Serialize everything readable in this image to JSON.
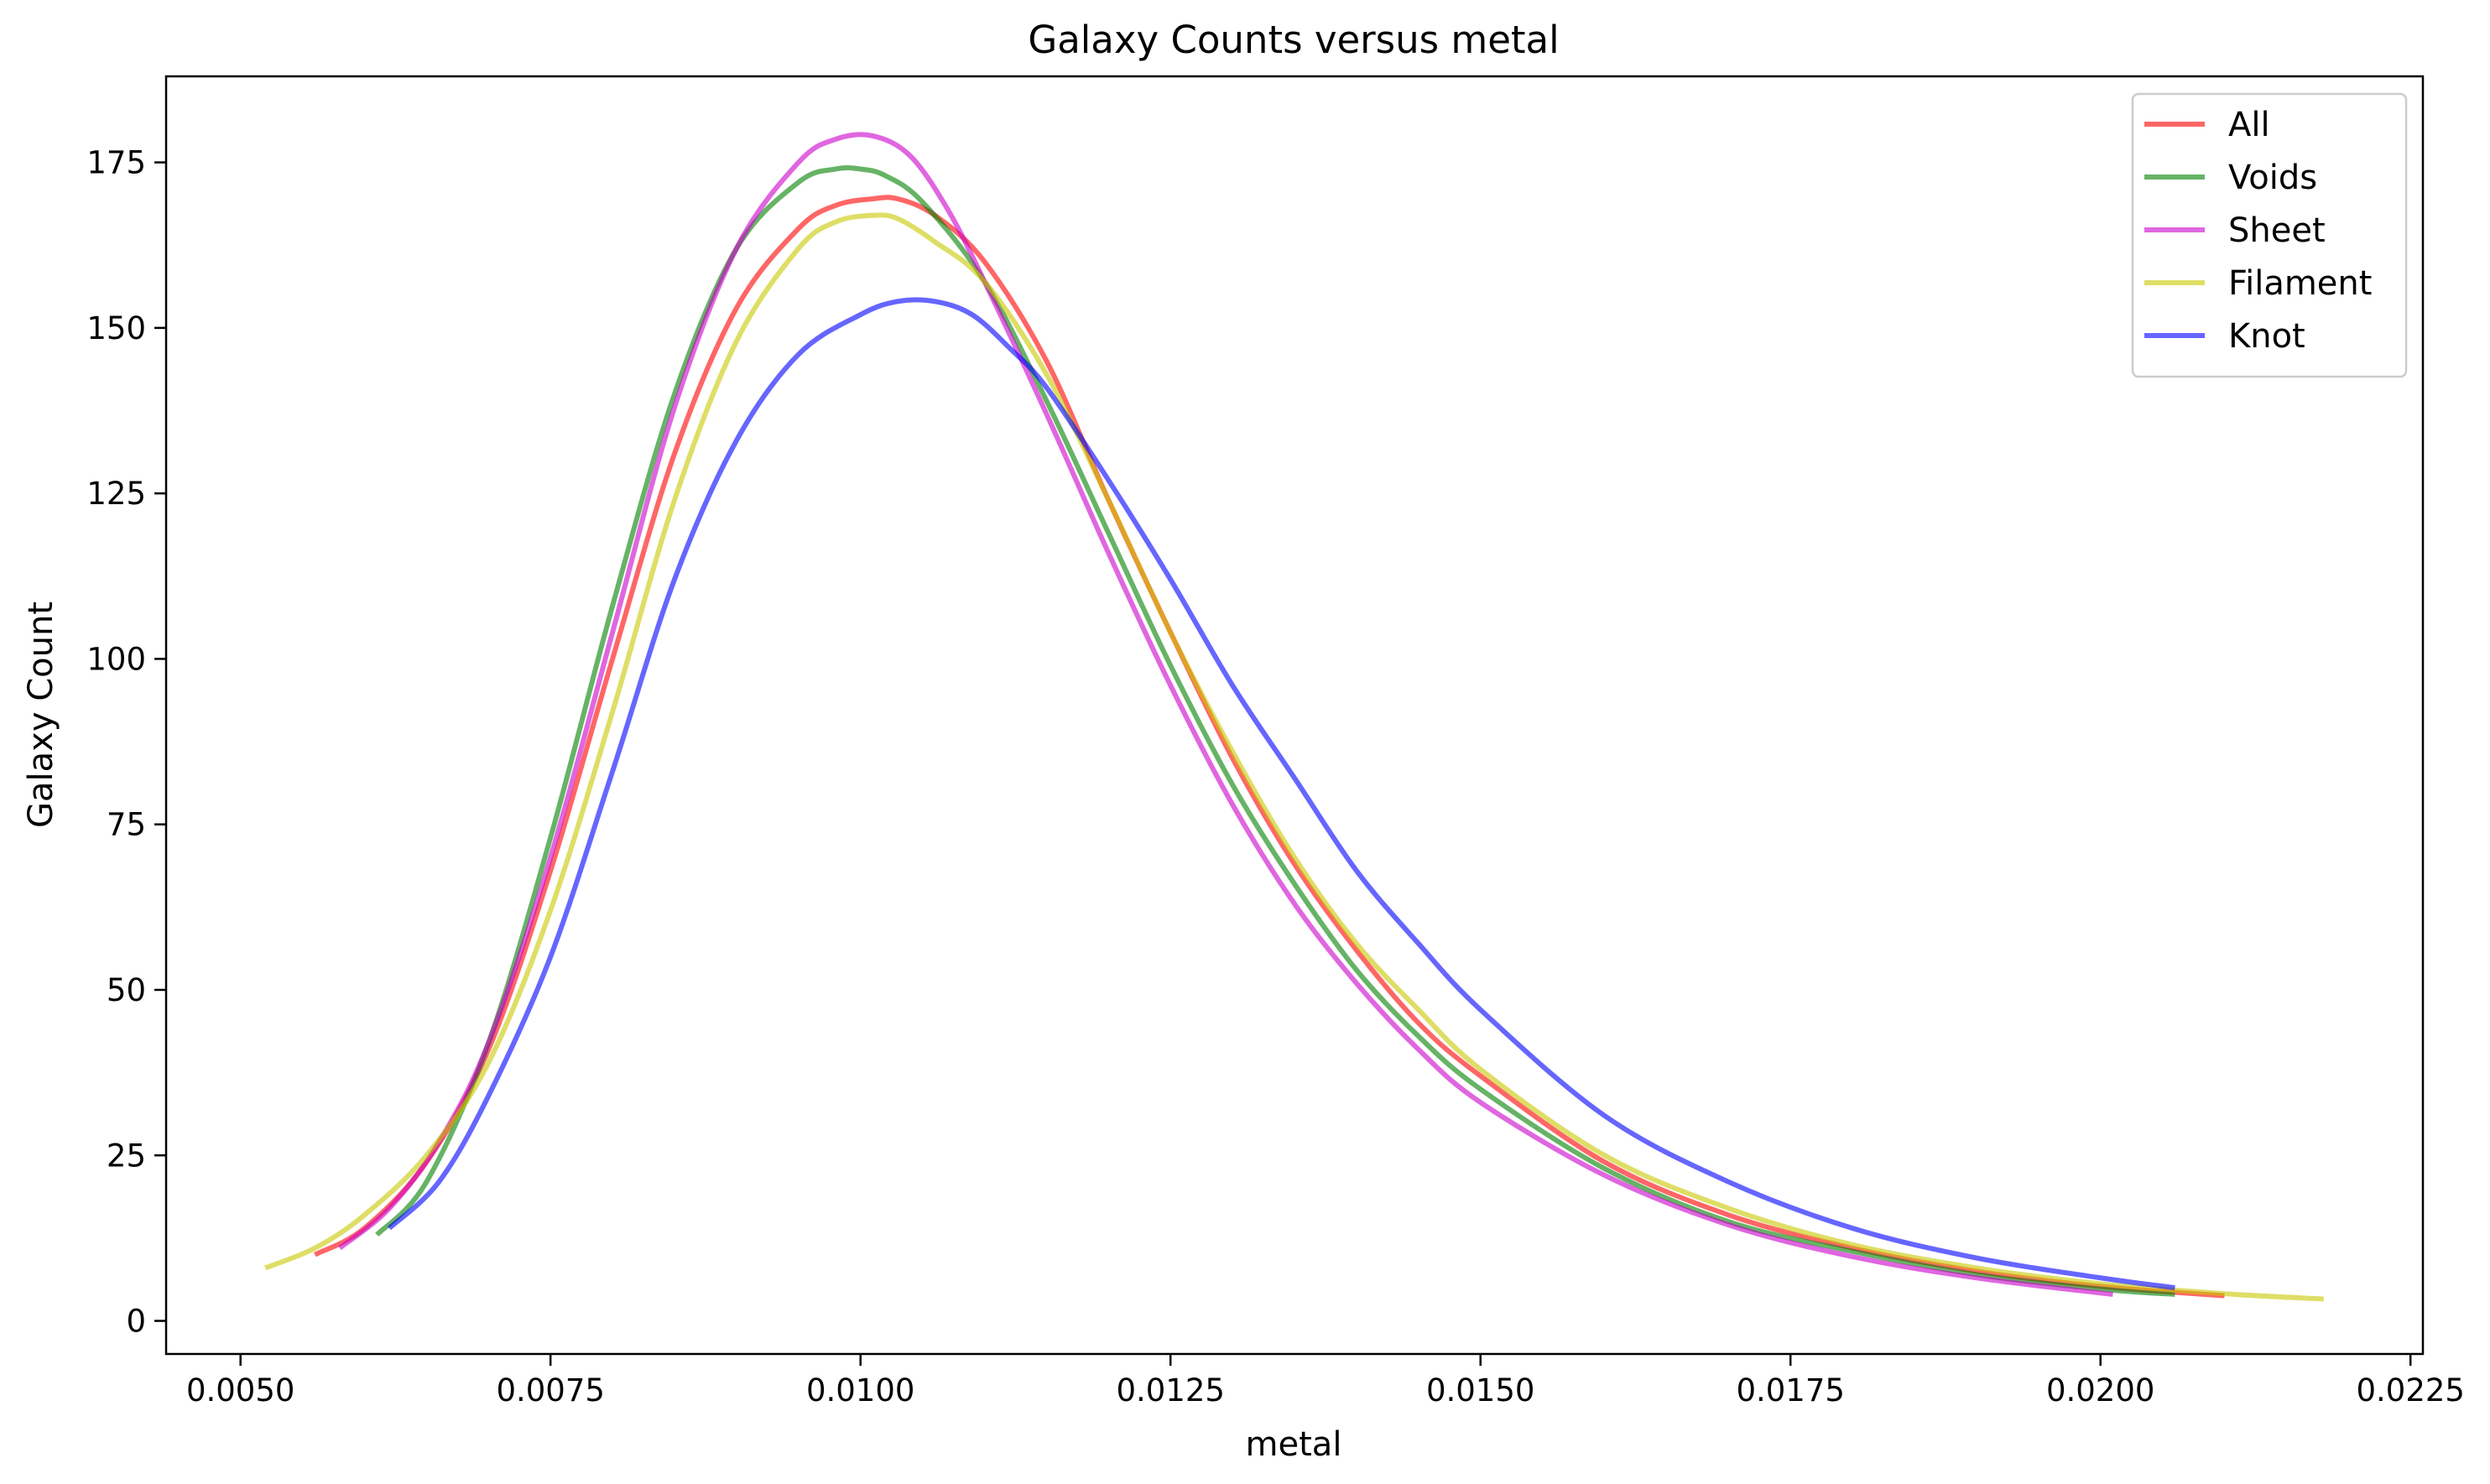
{
  "chart_data": {
    "type": "line",
    "title": "Galaxy Counts versus metal",
    "xlabel": "metal",
    "ylabel": "Galaxy Count",
    "xlim": [
      0.0044,
      0.0226
    ],
    "ylim": [
      -5,
      188
    ],
    "xticks": [
      0.005,
      0.0075,
      0.01,
      0.0125,
      0.015,
      0.0175,
      0.02,
      0.0225
    ],
    "xtick_labels": [
      "0.0050",
      "0.0075",
      "0.0100",
      "0.0125",
      "0.0150",
      "0.0175",
      "0.0200",
      "0.0225"
    ],
    "yticks": [
      0,
      25,
      50,
      75,
      100,
      125,
      150,
      175
    ],
    "ytick_labels": [
      "0",
      "25",
      "50",
      "75",
      "100",
      "125",
      "150",
      "175"
    ],
    "grid": false,
    "legend_position": "top-right",
    "series": [
      {
        "name": "All",
        "color": "#ff0000",
        "x": [
          0.0056,
          0.006,
          0.0065,
          0.007,
          0.0075,
          0.008,
          0.0085,
          0.009,
          0.0095,
          0.0098,
          0.0101,
          0.0103,
          0.0106,
          0.011,
          0.0115,
          0.012,
          0.0125,
          0.013,
          0.0135,
          0.014,
          0.0145,
          0.015,
          0.016,
          0.017,
          0.018,
          0.019,
          0.02,
          0.021
        ],
        "y": [
          10,
          14,
          24,
          41,
          68,
          100,
          131,
          153,
          165,
          168.5,
          169.5,
          169.5,
          167,
          160,
          145,
          124,
          104,
          85,
          69,
          56,
          45,
          37,
          24,
          16,
          11,
          7.5,
          5.2,
          3.8
        ]
      },
      {
        "name": "Voids",
        "color": "#008000",
        "x": [
          0.0061,
          0.0065,
          0.007,
          0.0075,
          0.008,
          0.0085,
          0.009,
          0.0095,
          0.0098,
          0.01,
          0.0102,
          0.0105,
          0.011,
          0.0115,
          0.012,
          0.0125,
          0.013,
          0.0135,
          0.014,
          0.0145,
          0.015,
          0.016,
          0.017,
          0.018,
          0.019,
          0.02,
          0.0206
        ],
        "y": [
          13,
          21,
          42,
          73,
          108,
          140,
          162,
          172,
          174,
          174,
          173,
          169,
          157,
          139,
          119,
          99,
          81,
          66,
          53,
          43,
          35,
          23,
          15,
          10.5,
          7,
          4.8,
          4
        ]
      },
      {
        "name": "Sheet",
        "color": "#cc00cc",
        "x": [
          0.0058,
          0.0062,
          0.0066,
          0.007,
          0.0075,
          0.008,
          0.0085,
          0.009,
          0.0095,
          0.0098,
          0.0101,
          0.0104,
          0.0107,
          0.011,
          0.0115,
          0.012,
          0.0125,
          0.013,
          0.0135,
          0.014,
          0.0145,
          0.015,
          0.016,
          0.017,
          0.018,
          0.019,
          0.0201
        ],
        "y": [
          11,
          17,
          27,
          42,
          70,
          104,
          138,
          162,
          175,
          178.5,
          179,
          176,
          168,
          157,
          137,
          116,
          96,
          78,
          63,
          51,
          41,
          33,
          22,
          14.5,
          9.7,
          6.5,
          4
        ]
      },
      {
        "name": "Filament",
        "color": "#c8c800",
        "x": [
          0.0052,
          0.0056,
          0.006,
          0.0065,
          0.007,
          0.0075,
          0.008,
          0.0085,
          0.009,
          0.0095,
          0.0098,
          0.0101,
          0.0103,
          0.0106,
          0.011,
          0.0115,
          0.012,
          0.0125,
          0.013,
          0.0135,
          0.014,
          0.0145,
          0.015,
          0.016,
          0.017,
          0.018,
          0.019,
          0.02,
          0.021,
          0.0218
        ],
        "y": [
          8,
          11,
          16,
          25,
          39,
          62,
          92,
          124,
          148,
          162,
          166,
          167,
          166.5,
          163,
          157,
          143,
          124,
          104,
          86,
          70,
          57,
          47,
          38,
          25,
          17,
          11.5,
          8,
          5.6,
          4.1,
          3.3
        ]
      },
      {
        "name": "Knot",
        "color": "#0000ff",
        "x": [
          0.0062,
          0.0066,
          0.007,
          0.0075,
          0.008,
          0.0085,
          0.009,
          0.0095,
          0.01,
          0.0103,
          0.0106,
          0.0109,
          0.0112,
          0.0115,
          0.012,
          0.0125,
          0.013,
          0.0135,
          0.014,
          0.0145,
          0.015,
          0.016,
          0.017,
          0.018,
          0.019,
          0.02,
          0.0206
        ],
        "y": [
          14,
          21,
          34,
          55,
          83,
          112,
          133,
          146,
          152,
          154,
          154,
          152,
          147,
          141,
          127,
          112,
          96,
          82,
          68,
          57,
          47,
          31,
          21,
          14,
          9.5,
          6.5,
          5
        ]
      }
    ]
  }
}
